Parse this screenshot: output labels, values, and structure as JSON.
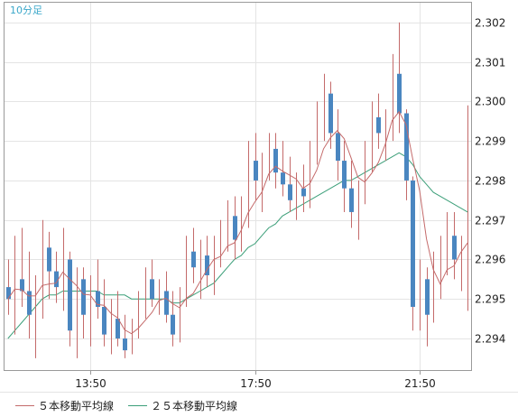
{
  "chart_data": {
    "type": "candlestick",
    "period_label": "10分足",
    "y_ticks": [
      "2.294",
      "2.295",
      "2.296",
      "2.297",
      "2.298",
      "2.299",
      "2.300",
      "2.301",
      "2.302"
    ],
    "y_range": [
      2.2932,
      2.3025
    ],
    "x_ticks": [
      "13:50",
      "17:50",
      "21:50"
    ],
    "grid": true,
    "legend": [
      {
        "name": "５本移動平均線",
        "color": "#c46a6a"
      },
      {
        "name": "２５本移動平均線",
        "color": "#3c9f79"
      }
    ],
    "colors": {
      "up": "#c46a6a",
      "down": "#4a86c0",
      "ma5": "#c46a6a",
      "ma25": "#3c9f79",
      "grid": "#e4e4e4",
      "frame": "#9a9a9a"
    },
    "x_start_index": -12,
    "tick_indices": [
      0,
      24,
      48
    ],
    "candles": [
      [
        2.2953,
        2.296,
        2.2946,
        2.295
      ],
      [
        2.295,
        2.2966,
        2.2941,
        2.2955
      ],
      [
        2.2955,
        2.2968,
        2.2948,
        2.2952
      ],
      [
        2.2952,
        2.2962,
        2.294,
        2.2946
      ],
      [
        2.2946,
        2.2956,
        2.2935,
        2.2951
      ],
      [
        2.2951,
        2.297,
        2.2945,
        2.2963
      ],
      [
        2.2963,
        2.2967,
        2.295,
        2.2957
      ],
      [
        2.2957,
        2.2962,
        2.2949,
        2.2953
      ],
      [
        2.2953,
        2.2968,
        2.2947,
        2.296
      ],
      [
        2.296,
        2.2962,
        2.2938,
        2.2942
      ],
      [
        2.2942,
        2.2958,
        2.2935,
        2.2955
      ],
      [
        2.2955,
        2.2958,
        2.294,
        2.2946
      ],
      [
        2.2946,
        2.2956,
        2.2938,
        2.2952
      ],
      [
        2.2952,
        2.296,
        2.2945,
        2.2948
      ],
      [
        2.2948,
        2.2955,
        2.2938,
        2.2941
      ],
      [
        2.2941,
        2.295,
        2.2936,
        2.2945
      ],
      [
        2.2945,
        2.2952,
        2.2938,
        2.294
      ],
      [
        2.294,
        2.2946,
        2.2935,
        2.2937
      ],
      [
        2.2937,
        2.2945,
        2.2936,
        2.2943
      ],
      [
        2.2943,
        2.2952,
        2.294,
        2.2948
      ],
      [
        2.2948,
        2.2958,
        2.2945,
        2.2955
      ],
      [
        2.2955,
        2.296,
        2.2948,
        2.295
      ],
      [
        2.295,
        2.2955,
        2.2946,
        2.2952
      ],
      [
        2.2952,
        2.2957,
        2.2944,
        2.2946
      ],
      [
        2.2946,
        2.2952,
        2.2938,
        2.2941
      ],
      [
        2.2941,
        2.2953,
        2.2939,
        2.295
      ],
      [
        2.295,
        2.2966,
        2.2948,
        2.2962
      ],
      [
        2.2962,
        2.2968,
        2.2954,
        2.2958
      ],
      [
        2.2958,
        2.2965,
        2.295,
        2.2961
      ],
      [
        2.2961,
        2.2966,
        2.2953,
        2.2956
      ],
      [
        2.2956,
        2.2966,
        2.2951,
        2.2963
      ],
      [
        2.2963,
        2.297,
        2.2958,
        2.2966
      ],
      [
        2.2966,
        2.2975,
        2.2962,
        2.2971
      ],
      [
        2.2971,
        2.2976,
        2.296,
        2.2965
      ],
      [
        2.2965,
        2.2976,
        2.2962,
        2.2972
      ],
      [
        2.2972,
        2.299,
        2.2968,
        2.2985
      ],
      [
        2.2985,
        2.2992,
        2.2975,
        2.298
      ],
      [
        2.298,
        2.2987,
        2.2972,
        2.2983
      ],
      [
        2.2983,
        2.2992,
        2.298,
        2.2988
      ],
      [
        2.2988,
        2.2992,
        2.2978,
        2.2982
      ],
      [
        2.2982,
        2.299,
        2.2976,
        2.2979
      ],
      [
        2.2979,
        2.2986,
        2.2972,
        2.2975
      ],
      [
        2.2975,
        2.2982,
        2.297,
        2.2978
      ],
      [
        2.2978,
        2.2984,
        2.2972,
        2.2976
      ],
      [
        2.2976,
        2.299,
        2.2973,
        2.2988
      ],
      [
        2.2988,
        2.3,
        2.2984,
        2.2996
      ],
      [
        2.2996,
        2.3007,
        2.299,
        2.3002
      ],
      [
        2.3002,
        2.3005,
        2.2988,
        2.2992
      ],
      [
        2.2992,
        2.2998,
        2.298,
        2.2985
      ],
      [
        2.2985,
        2.299,
        2.2972,
        2.2978
      ],
      [
        2.2978,
        2.2985,
        2.2968,
        2.2972
      ],
      [
        2.2972,
        2.298,
        2.2965,
        2.2977
      ],
      [
        2.2977,
        2.299,
        2.2974,
        2.2986
      ],
      [
        2.2986,
        2.3,
        2.2982,
        2.2996
      ],
      [
        2.2996,
        2.3002,
        2.2988,
        2.2992
      ],
      [
        2.2992,
        2.2998,
        2.2985,
        2.2995
      ],
      [
        2.2995,
        2.3012,
        2.299,
        2.3007
      ],
      [
        2.3007,
        2.302,
        2.2992,
        2.2997
      ],
      [
        2.2997,
        2.2998,
        2.2975,
        2.298
      ],
      [
        2.298,
        2.2981,
        2.2942,
        2.2948
      ],
      [
        2.2948,
        2.296,
        2.2942,
        2.2955
      ],
      [
        2.2955,
        2.2958,
        2.2938,
        2.2946
      ],
      [
        2.2946,
        2.2962,
        2.2944,
        2.2958
      ],
      [
        2.2958,
        2.2966,
        2.295,
        2.2962
      ],
      [
        2.2962,
        2.2972,
        2.2956,
        2.2966
      ],
      [
        2.2966,
        2.2972,
        2.2955,
        2.296
      ],
      [
        2.296,
        2.2966,
        2.2952,
        2.2963
      ],
      [
        2.2963,
        2.2999,
        2.2947,
        2.297
      ]
    ],
    "ma25": [
      2.294,
      2.2942,
      2.2944,
      2.2946,
      2.2948,
      2.295,
      2.2951,
      2.2951,
      2.2952,
      2.2952,
      2.2952,
      2.2952,
      2.2952,
      2.2952,
      2.2951,
      2.2951,
      2.2951,
      2.2951,
      2.295,
      2.295,
      2.295,
      2.295,
      2.295,
      2.295,
      2.2949,
      2.2949,
      2.295,
      2.2951,
      2.2952,
      2.2953,
      2.2954,
      2.2956,
      2.2958,
      2.296,
      2.2961,
      2.2963,
      2.2964,
      2.2966,
      2.2968,
      2.2969,
      2.2971,
      2.2972,
      2.2973,
      2.2974,
      2.2975,
      2.2976,
      2.2977,
      2.2978,
      2.2979,
      2.298,
      2.298,
      2.2981,
      2.2982,
      2.2983,
      2.2984,
      2.2985,
      2.2986,
      2.2987,
      2.2986,
      2.2984,
      2.2981,
      2.2979,
      2.2977,
      2.2976,
      2.2975,
      2.2974,
      2.2973,
      2.2972
    ]
  }
}
